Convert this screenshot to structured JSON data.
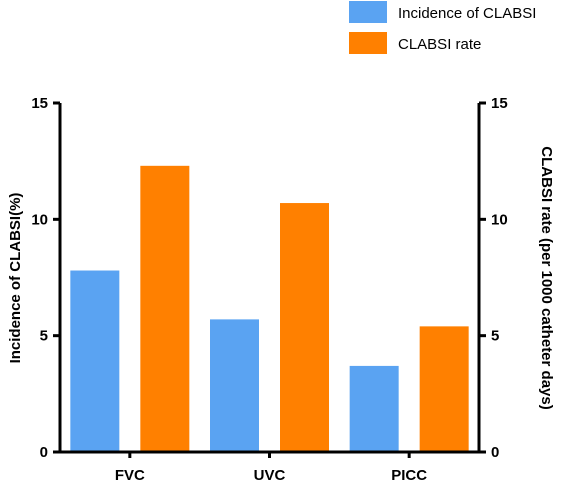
{
  "chart_data": {
    "type": "bar",
    "categories": [
      "FVC",
      "UVC",
      "PICC"
    ],
    "series": [
      {
        "name": "Incidence of CLABSI",
        "axis": "left",
        "color": "#5aa3f2",
        "values": [
          7.8,
          5.7,
          3.7
        ]
      },
      {
        "name": "CLABSI rate",
        "axis": "right",
        "color": "#ff8000",
        "values": [
          12.3,
          10.7,
          5.4
        ]
      }
    ],
    "ylabel_left": "Incidence of CLABSI(%)",
    "ylabel_right": "CLABSI rate (per 1000 catheter days)",
    "ylim_left": [
      0,
      15
    ],
    "ylim_right": [
      0,
      15
    ],
    "yticks_left": [
      "0",
      "5",
      "10",
      "15"
    ],
    "yticks_right": [
      "0",
      "5",
      "10",
      "15"
    ],
    "legend_position": "top-right",
    "grid": false
  }
}
